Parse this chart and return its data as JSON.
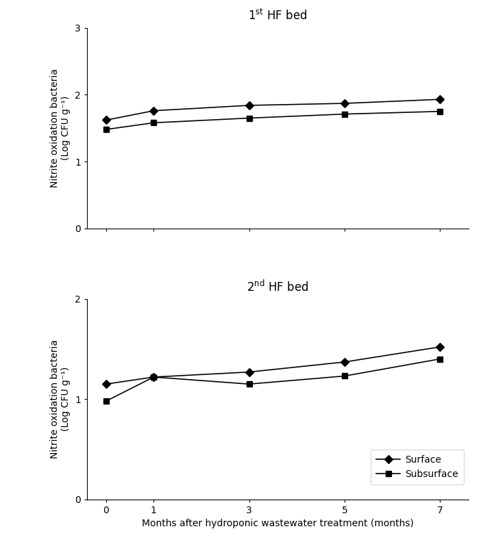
{
  "x": [
    0,
    1,
    3,
    5,
    7
  ],
  "plot1": {
    "title_parts": [
      "1",
      "st",
      " HF bed"
    ],
    "surface": [
      1.62,
      1.76,
      1.84,
      1.87,
      1.93
    ],
    "subsurface": [
      1.48,
      1.58,
      1.65,
      1.71,
      1.75
    ],
    "ylim": [
      0,
      3
    ],
    "yticks": [
      0,
      1,
      2,
      3
    ]
  },
  "plot2": {
    "title_parts": [
      "2",
      "nd",
      " HF bed"
    ],
    "surface": [
      1.15,
      1.22,
      1.27,
      1.37,
      1.52
    ],
    "subsurface": [
      0.98,
      1.22,
      1.15,
      1.23,
      1.4
    ],
    "ylim": [
      0,
      2
    ],
    "yticks": [
      0,
      1,
      2
    ]
  },
  "xlabel": "Months after hydroponic wastewater treatment (months)",
  "ylabel_line1": "Nitrite oxidation bacteria",
  "ylabel_line2": "(Log CFU g⁻¹)",
  "surface_label": "Surface",
  "subsurface_label": "Subsurface",
  "line_color": "black",
  "surface_marker": "D",
  "subsurface_marker": "s",
  "marker_size": 6,
  "line_width": 1.2,
  "title_fontsize": 12,
  "label_fontsize": 10,
  "tick_fontsize": 10,
  "legend_fontsize": 10
}
